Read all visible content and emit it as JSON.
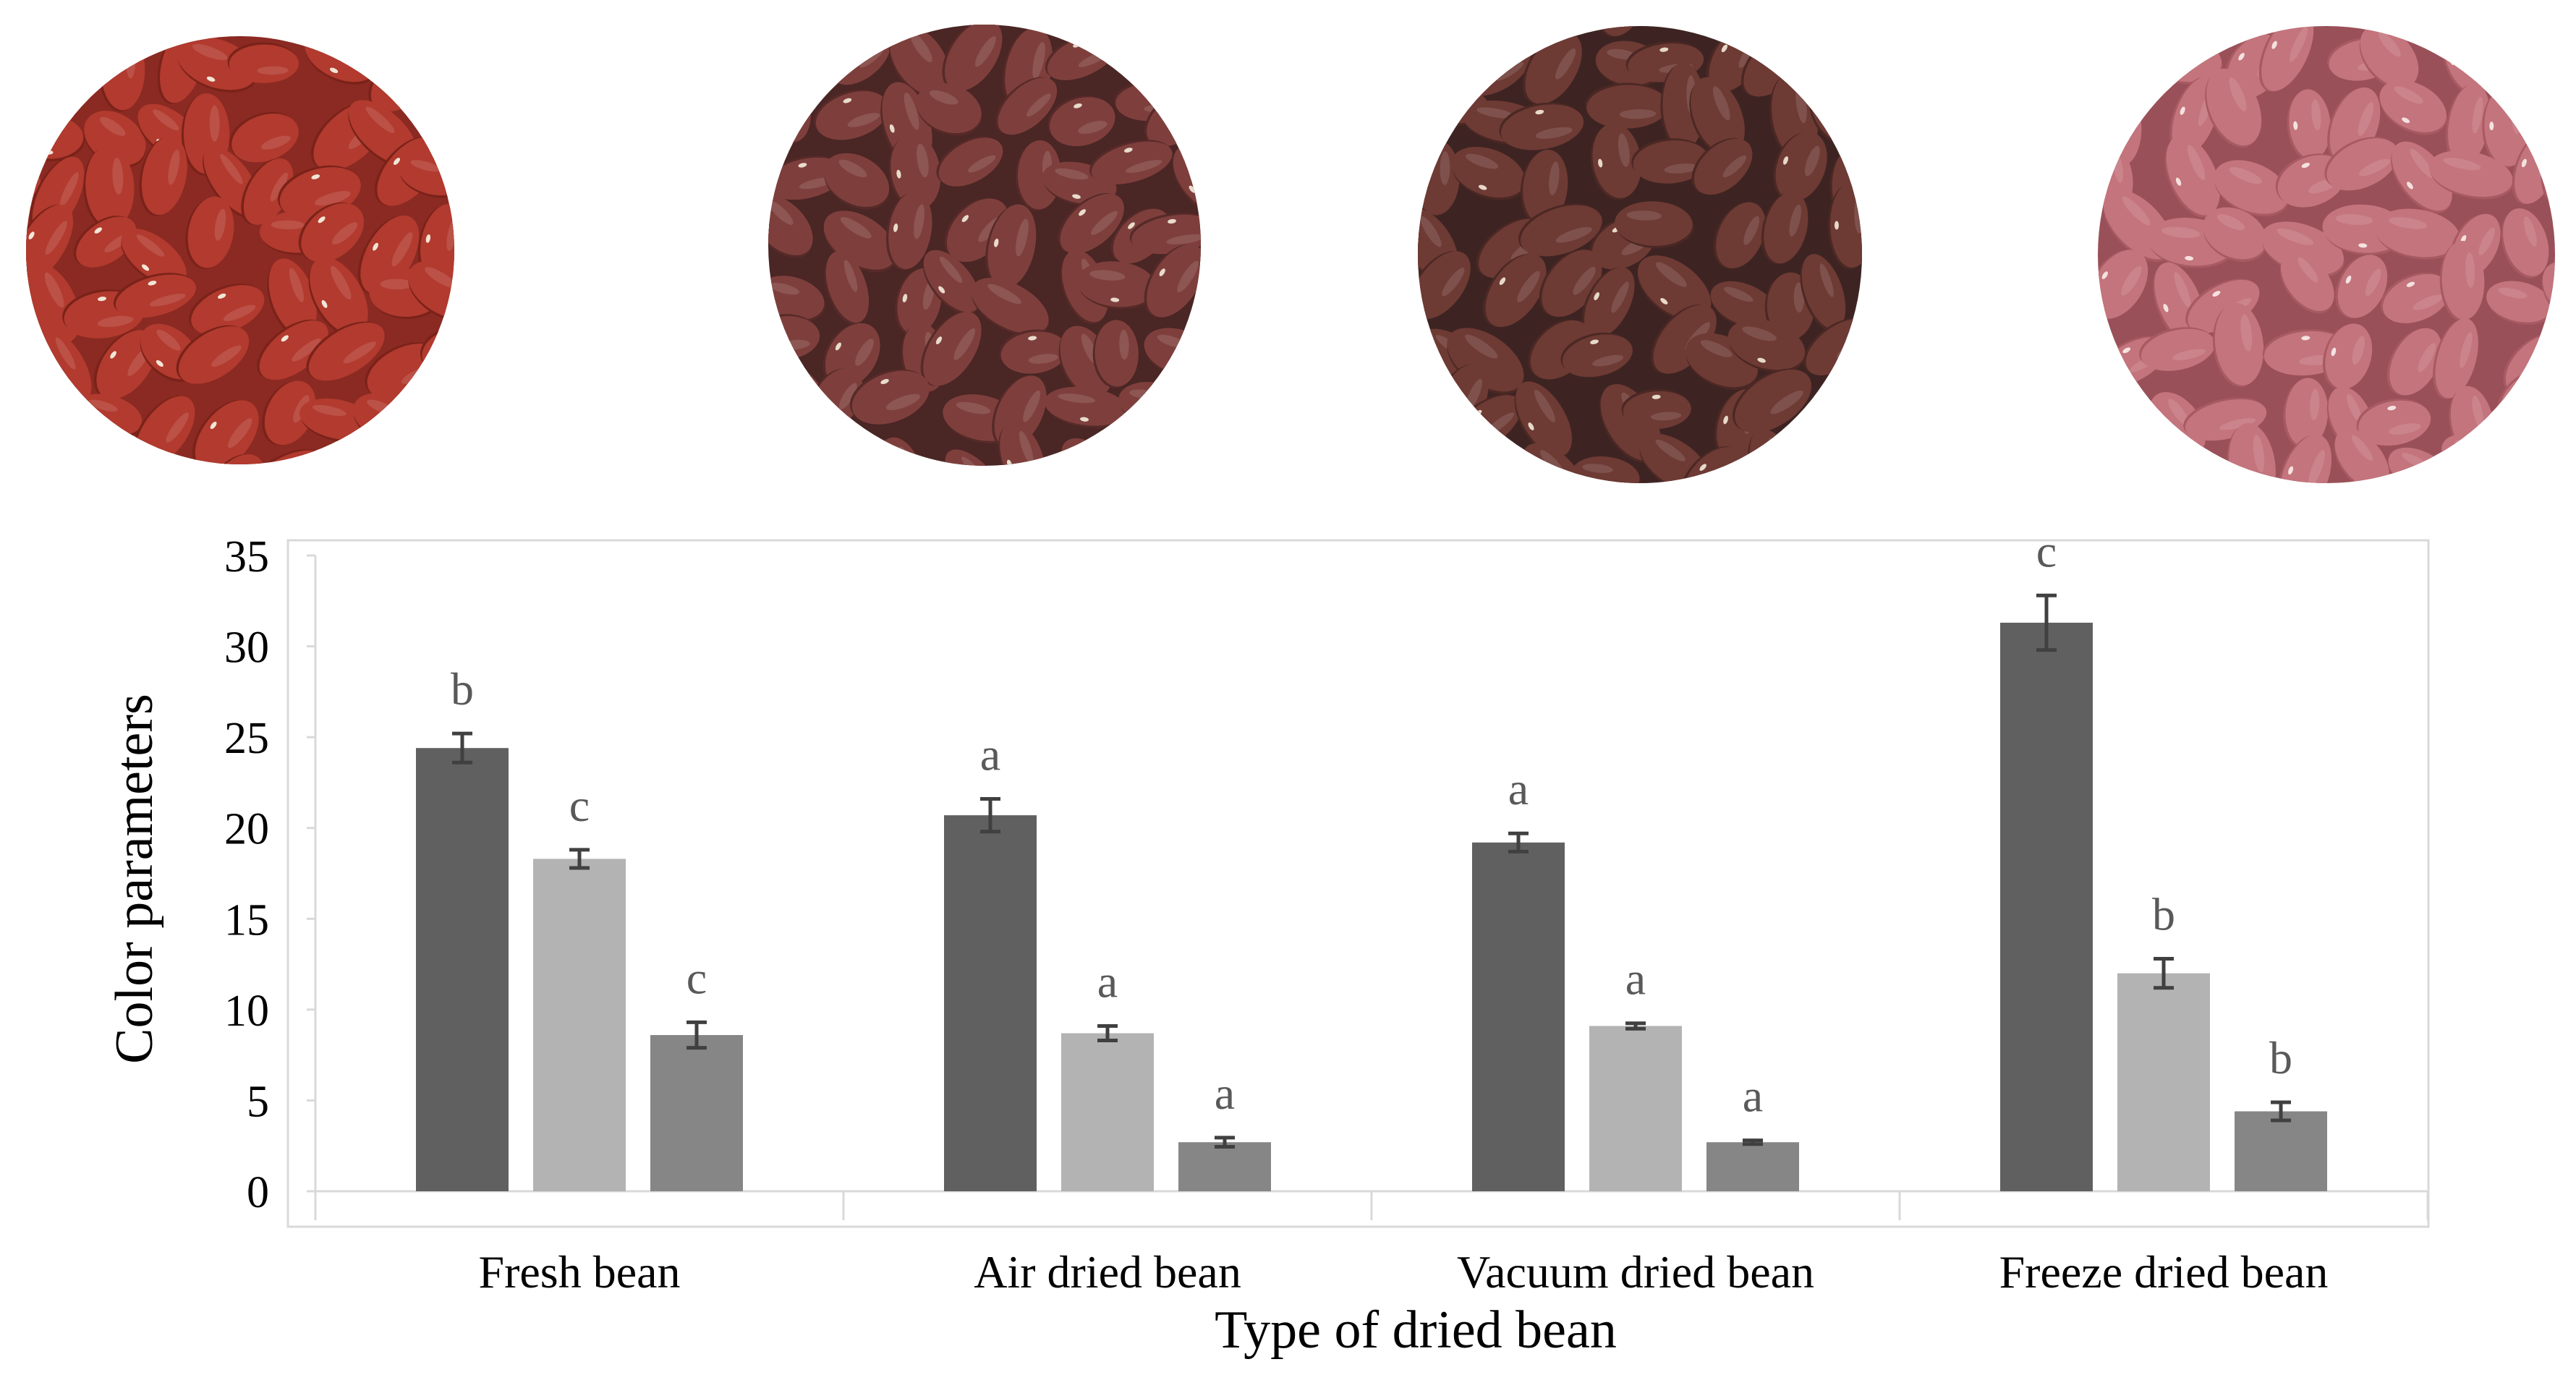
{
  "photos": [
    {
      "id": "fresh",
      "base": "#8a2a22",
      "bean": "#b23a2e",
      "bean_dark": "#7a2219",
      "hilum": "#f2e6d6"
    },
    {
      "id": "air",
      "base": "#4a2625",
      "bean": "#7e3f3c",
      "bean_dark": "#562a28",
      "hilum": "#e8dccc"
    },
    {
      "id": "vacuum",
      "base": "#3d2422",
      "bean": "#6e3a34",
      "bean_dark": "#4b2824",
      "hilum": "#e6d9c8"
    },
    {
      "id": "freeze",
      "base": "#9a5058",
      "bean": "#c4747c",
      "bean_dark": "#a85a62",
      "hilum": "#f4e2e0"
    }
  ],
  "chart_data": {
    "type": "bar",
    "xlabel": "Type of dried bean",
    "ylabel": "Color parameters",
    "ylim": [
      0,
      35
    ],
    "yticks": [
      "0",
      "5",
      "10",
      "15",
      "20",
      "25",
      "30",
      "35"
    ],
    "categories": [
      "Fresh bean",
      "Air dried bean",
      "Vacuum dried bean",
      "Freeze dried bean"
    ],
    "series": [
      {
        "color": "#606060",
        "values": [
          24.4,
          20.7,
          19.2,
          31.3
        ],
        "errors": [
          0.8,
          0.9,
          0.5,
          1.5
        ],
        "letters": [
          "b",
          "a",
          "a",
          "c"
        ]
      },
      {
        "color": "#b3b3b3",
        "values": [
          18.3,
          8.7,
          9.1,
          12.0
        ],
        "errors": [
          0.5,
          0.4,
          0.15,
          0.8
        ],
        "letters": [
          "c",
          "a",
          "a",
          "b"
        ]
      },
      {
        "color": "#868686",
        "values": [
          8.6,
          2.7,
          2.7,
          4.4
        ],
        "errors": [
          0.7,
          0.25,
          0.1,
          0.5
        ],
        "letters": [
          "c",
          "a",
          "a",
          "b"
        ]
      }
    ],
    "grid": false,
    "legend": "none",
    "frame_color": "#d9d9d9",
    "text_color": "#000000",
    "letter_color": "#595959"
  }
}
